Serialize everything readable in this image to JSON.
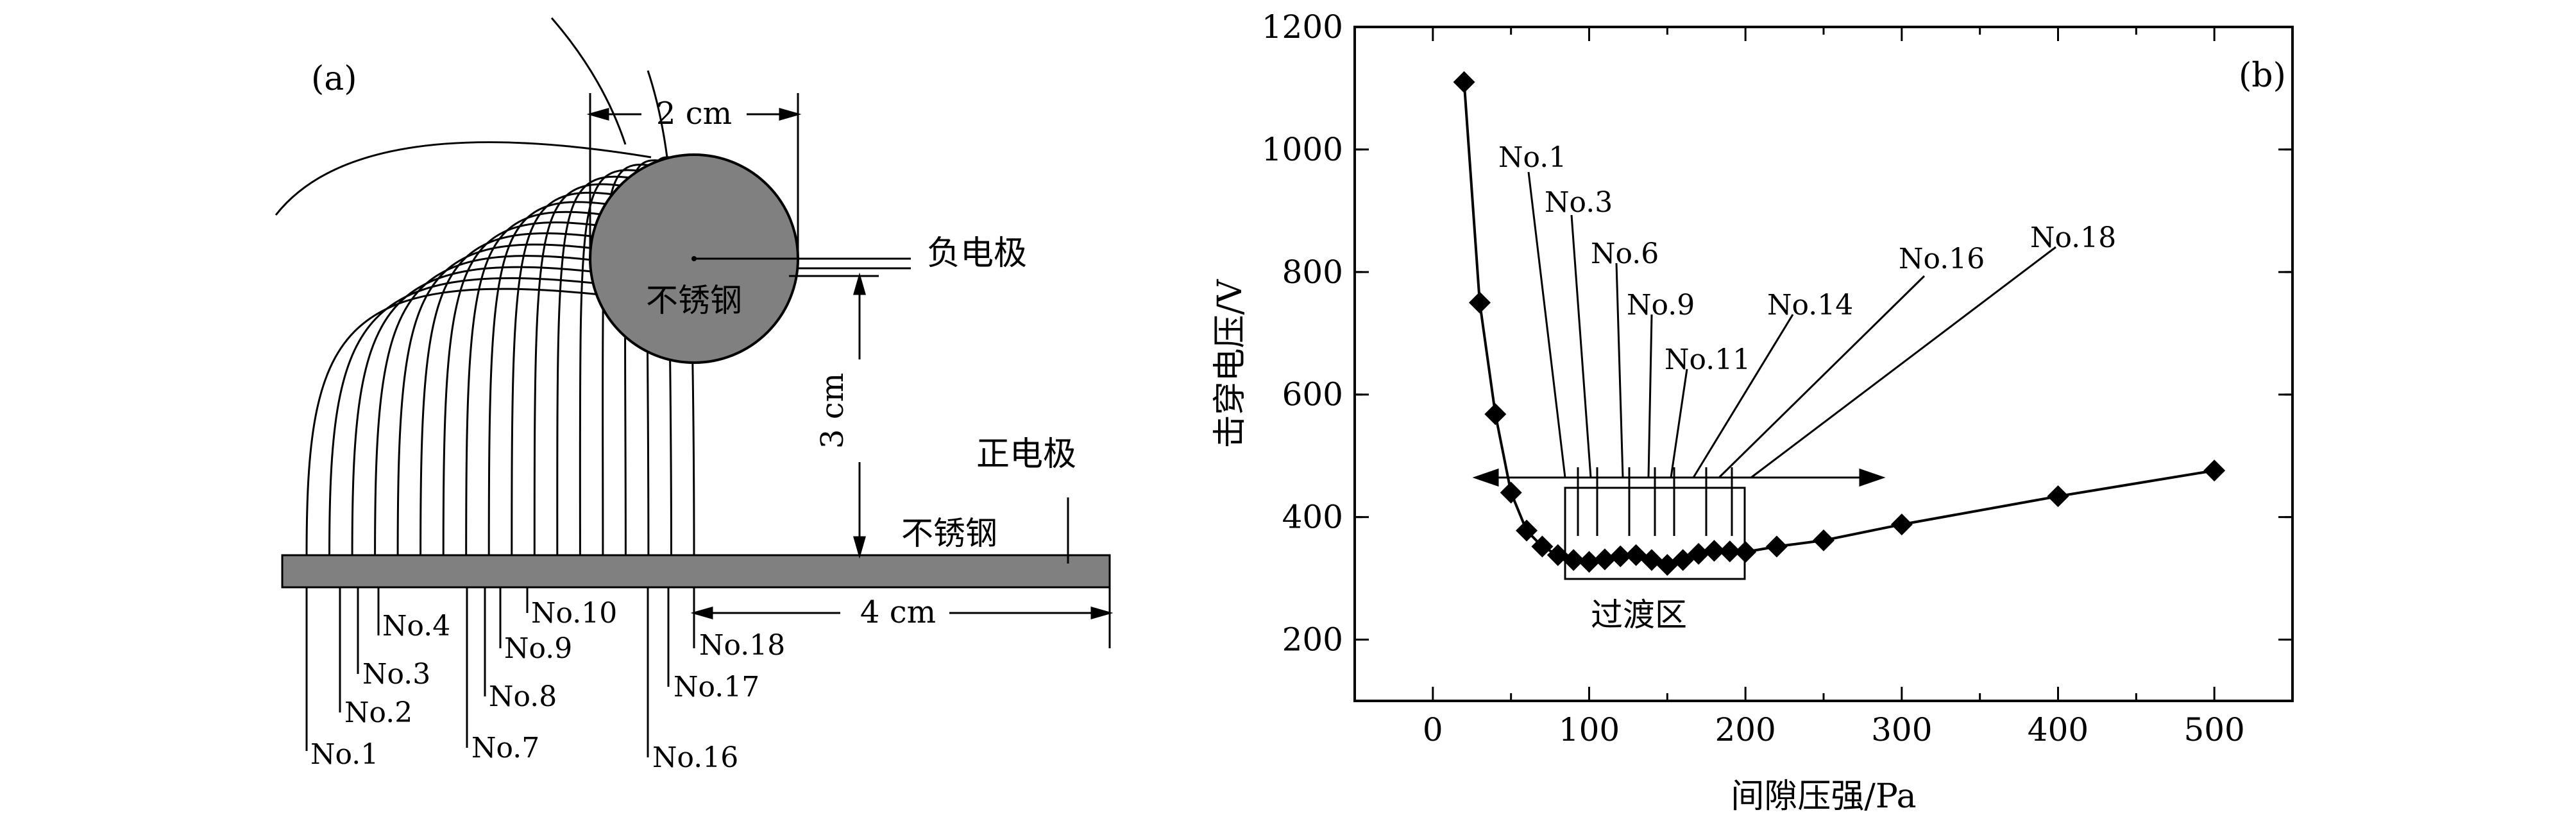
{
  "left_panel": {
    "panel_label": "(a)",
    "width_label": "2 cm",
    "height_label": "3 cm",
    "distance_label": "4 cm",
    "cathode_label": "负电极",
    "cathode_material": "不锈钢",
    "anode_label": "正电极",
    "anode_material": "不锈钢",
    "path_labels": [
      "No.1",
      "No.2",
      "No.3",
      "No.4",
      "No.7",
      "No.8",
      "No.9",
      "No.10",
      "No.16",
      "No.17",
      "No.18"
    ],
    "colors": {
      "electrode": "#808080",
      "line": "#000000"
    }
  },
  "chart_data": {
    "type": "scatter",
    "panel_label": "(b)",
    "xlabel": "间隙压强/Pa",
    "ylabel": "击穿电压/V",
    "xlim": [
      -50,
      550
    ],
    "ylim": [
      100,
      1200
    ],
    "xticks": [
      0,
      100,
      200,
      300,
      400,
      500
    ],
    "yticks": [
      200,
      400,
      600,
      800,
      1000,
      1200
    ],
    "series": [
      {
        "x": [
          20,
          30,
          40,
          50,
          60,
          70,
          80,
          90,
          100,
          110,
          120,
          130,
          140,
          150,
          160,
          170,
          180,
          190,
          200,
          220,
          250,
          300,
          400,
          500
        ],
        "y": [
          1110,
          750,
          568,
          440,
          378,
          352,
          338,
          330,
          327,
          331,
          336,
          338,
          330,
          322,
          330,
          340,
          345,
          344,
          343,
          352,
          362,
          388,
          434,
          476
        ]
      }
    ],
    "annotations": [
      "No.1",
      "No.3",
      "No.6",
      "No.9",
      "No.11",
      "No.14",
      "No.16",
      "No.18"
    ],
    "region_label": "过渡区",
    "marker": "diamond",
    "color": "#000000"
  }
}
